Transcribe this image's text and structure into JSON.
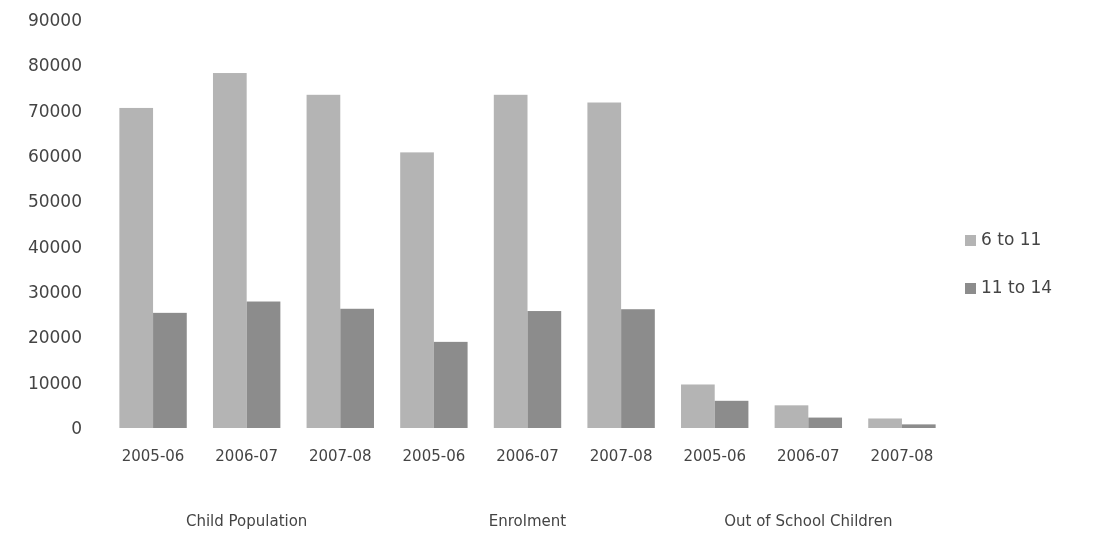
{
  "chart_data": {
    "type": "bar",
    "categories": [
      "2005-06",
      "2006-07",
      "2007-08",
      "2005-06",
      "2006-07",
      "2007-08",
      "2005-06",
      "2006-07",
      "2007-08"
    ],
    "series": [
      {
        "name": "6 to 11",
        "color": "#b4b4b4",
        "values": [
          70600,
          78300,
          73500,
          60800,
          73500,
          71800,
          9600,
          5000,
          2100
        ]
      },
      {
        "name": "11 to 14",
        "color": "#8c8c8c",
        "values": [
          25400,
          27900,
          26300,
          19000,
          25800,
          26200,
          6000,
          2300,
          800
        ]
      }
    ],
    "ylim": [
      0,
      90000
    ],
    "yticks": [
      0,
      10000,
      20000,
      30000,
      40000,
      50000,
      60000,
      70000,
      80000,
      90000
    ],
    "annotations": [
      "Child Population",
      "Enrolment",
      "Out of School Children"
    ],
    "legend": "right",
    "grid": false
  }
}
